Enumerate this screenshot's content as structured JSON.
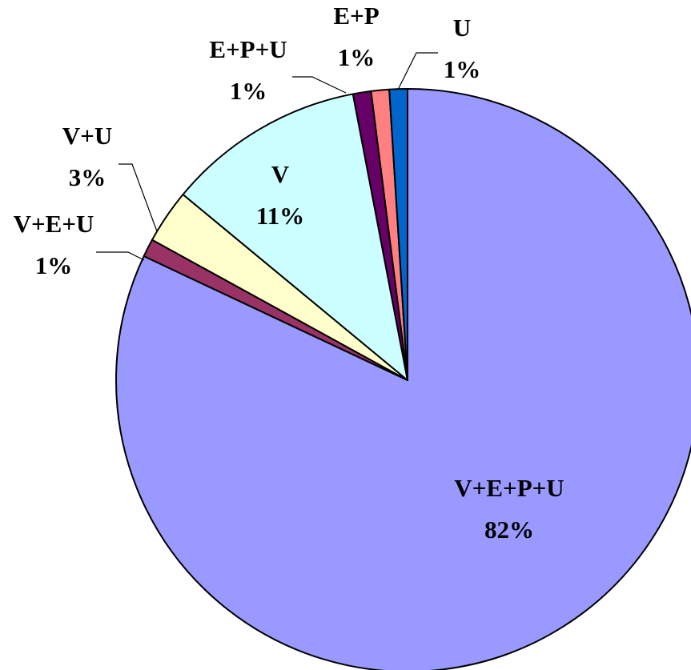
{
  "chart_data": {
    "type": "pie",
    "title": "",
    "start_angle_deg": 0,
    "direction": "clockwise",
    "slice_outline_color": "#000000",
    "slices": [
      {
        "name": "V+E+P+U",
        "value": 82,
        "percent_label": "82%",
        "color": "#9999FF"
      },
      {
        "name": "V+E+U",
        "value": 1,
        "percent_label": "1%",
        "color": "#993366"
      },
      {
        "name": "V+U",
        "value": 3,
        "percent_label": "3%",
        "color": "#FFFFCC"
      },
      {
        "name": "V",
        "value": 11,
        "percent_label": "11%",
        "color": "#CCFFFF"
      },
      {
        "name": "E+P+U",
        "value": 1,
        "percent_label": "1%",
        "color": "#660066"
      },
      {
        "name": "E+P",
        "value": 1,
        "percent_label": "1%",
        "color": "#FF8080"
      },
      {
        "name": "U",
        "value": 1,
        "percent_label": "1%",
        "color": "#0066CC"
      }
    ]
  }
}
